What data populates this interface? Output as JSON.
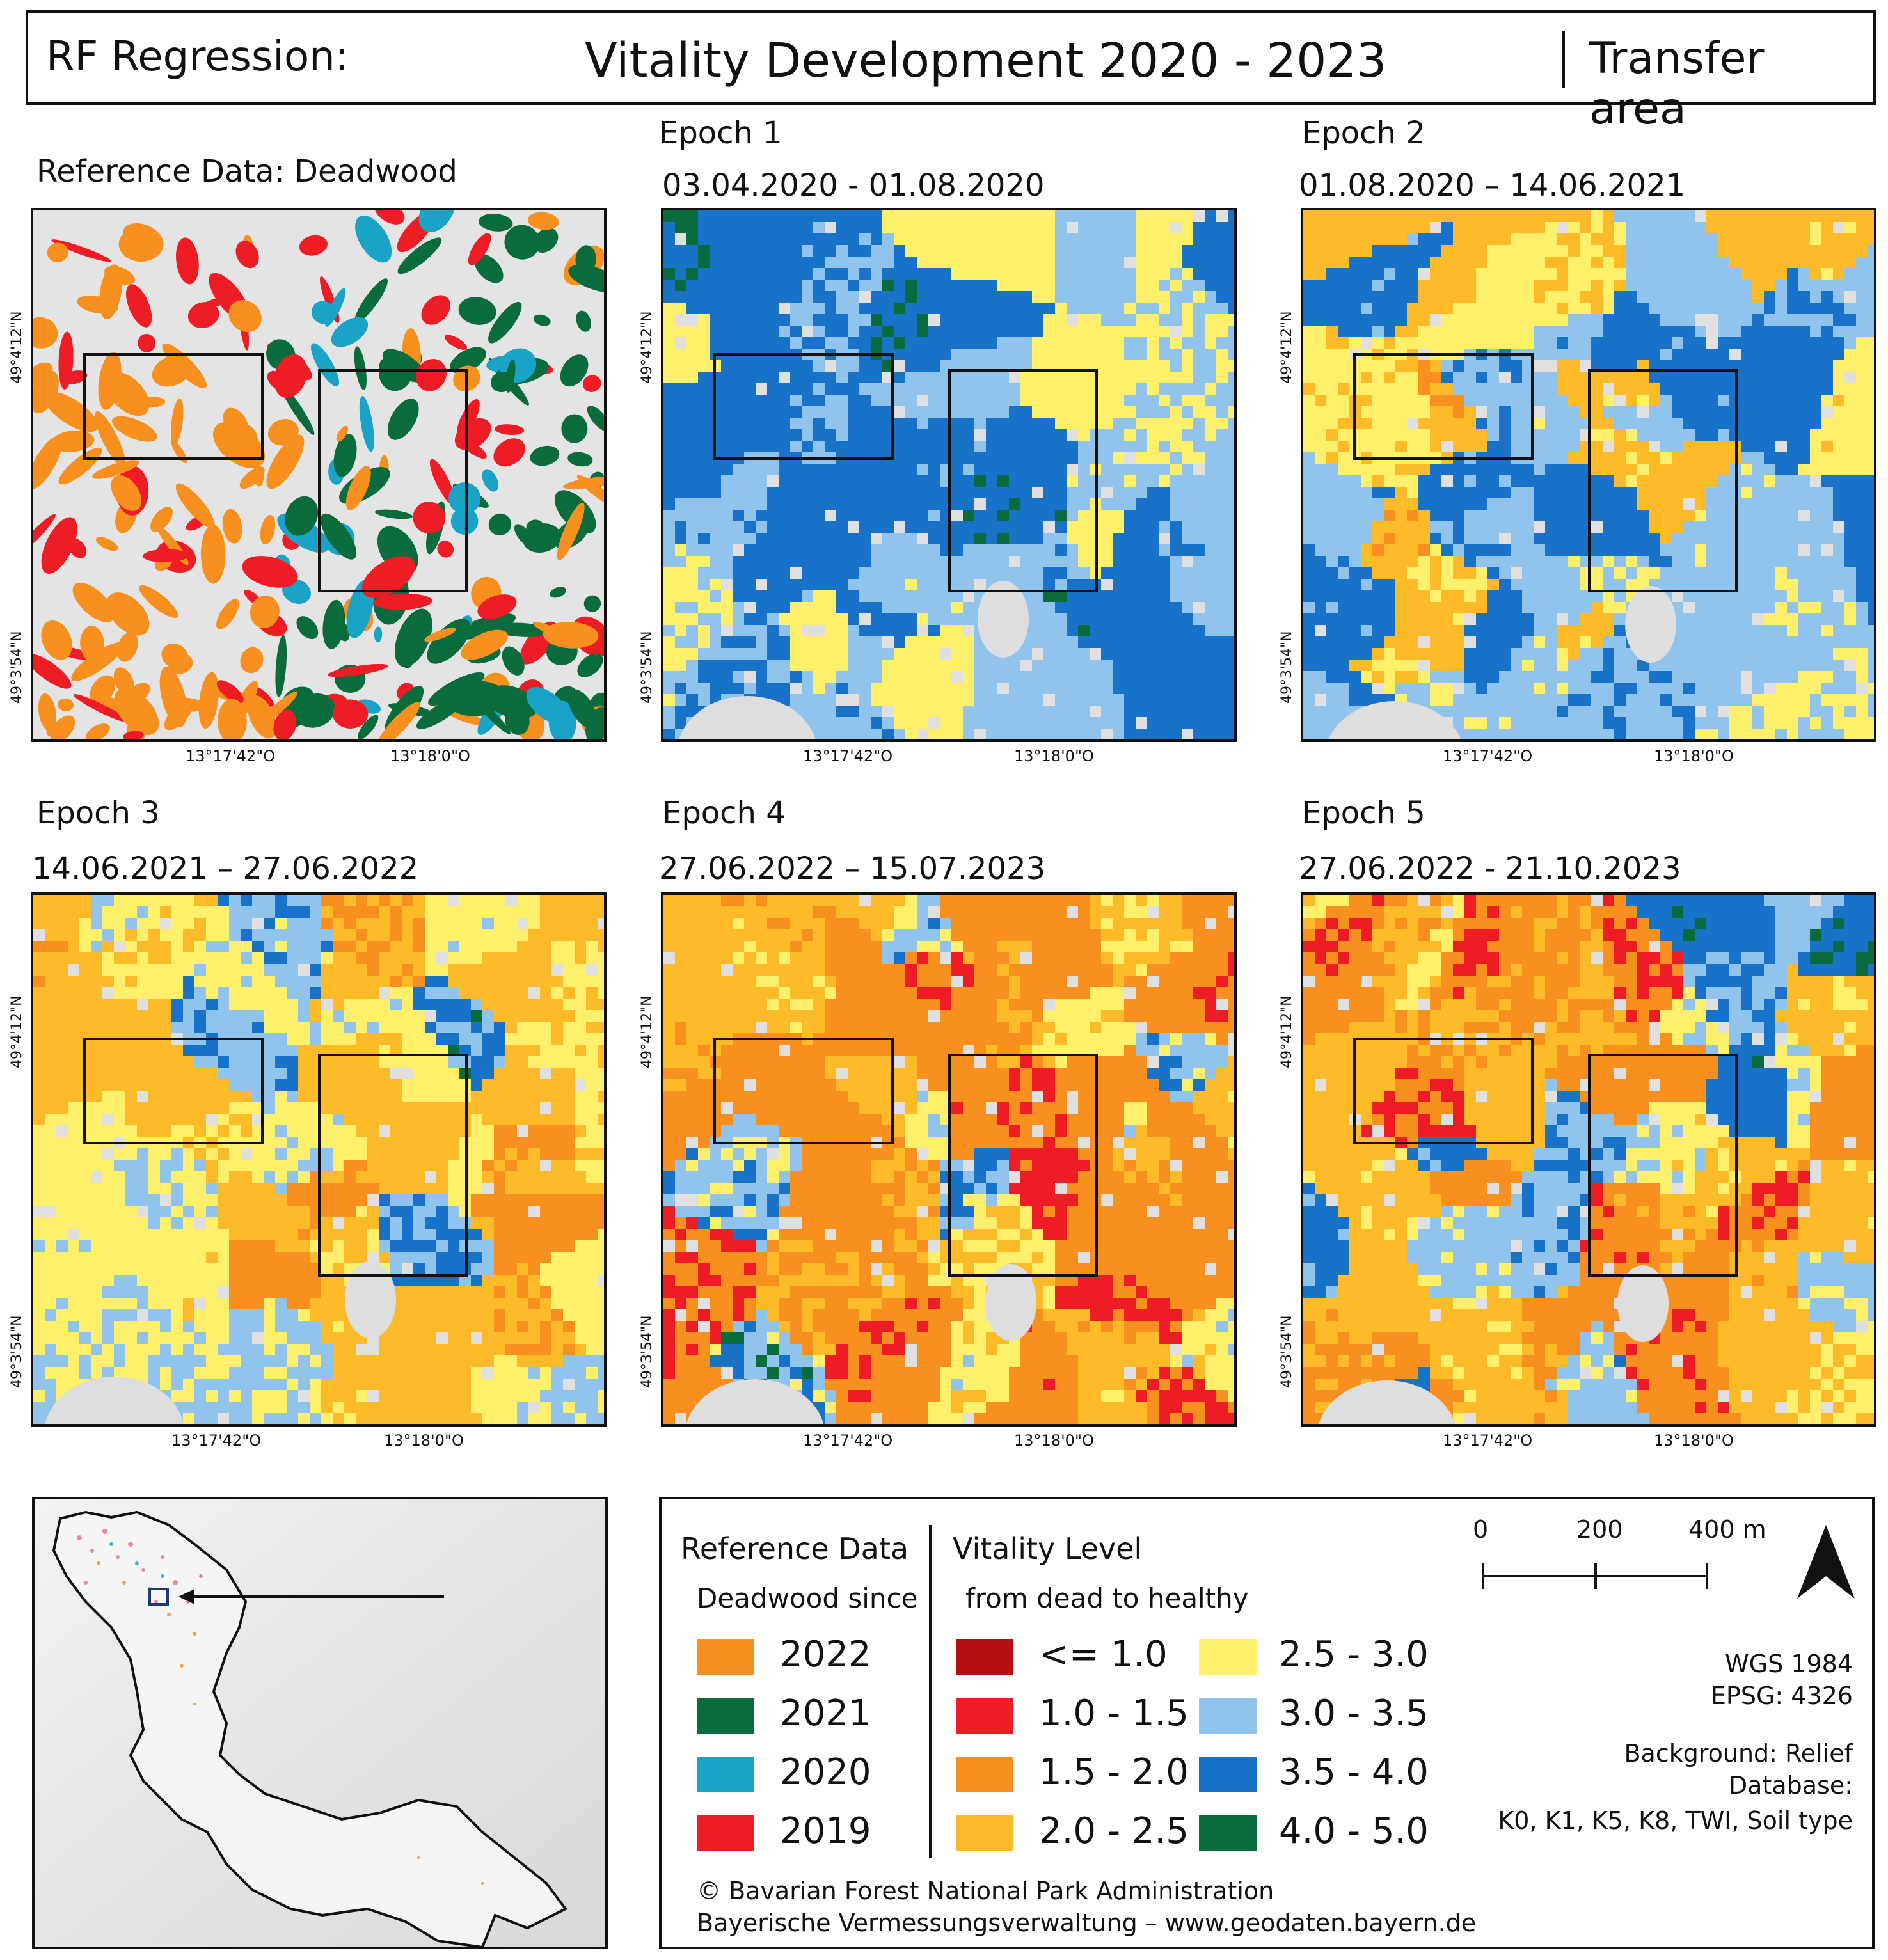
{
  "header": {
    "left": "RF Regression:",
    "center": "Vitality Development 2020 - 2023",
    "right": "Transfer area"
  },
  "panels": [
    {
      "name": "reference",
      "label": "Reference Data: Deadwood",
      "date": ""
    },
    {
      "name": "epoch1",
      "label": "Epoch 1",
      "date": "03.04.2020 - 01.08.2020"
    },
    {
      "name": "epoch2",
      "label": "Epoch 2",
      "date": "01.08.2020 – 14.06.2021"
    },
    {
      "name": "epoch3",
      "label": "Epoch 3",
      "date": "14.06.2021 – 27.06.2022"
    },
    {
      "name": "epoch4",
      "label": "Epoch 4",
      "date": "27.06.2022 – 15.07.2023"
    },
    {
      "name": "epoch5",
      "label": "Epoch 5",
      "date": "27.06.2022 - 21.10.2023"
    }
  ],
  "axes": {
    "lat_top": "49°4'12\"N",
    "lat_bottom": "49°3'54\"N",
    "lon_left": "13°17'42\"O",
    "lon_right": "13°18'0\"O"
  },
  "legend": {
    "reference_title": "Reference Data",
    "reference_sub": "Deadwood since",
    "reference_items": [
      {
        "label": "2022",
        "color": "#f7901e"
      },
      {
        "label": "2021",
        "color": "#0a6b3c"
      },
      {
        "label": "2020",
        "color": "#1aa3c6"
      },
      {
        "label": "2019",
        "color": "#ee1c25"
      }
    ],
    "vitality_title": "Vitality Level",
    "vitality_sub": "from dead to healthy",
    "vitality_items": [
      {
        "label": "<= 1.0",
        "color": "#b50d12"
      },
      {
        "label": "1.0 - 1.5",
        "color": "#ee1c25"
      },
      {
        "label": "1.5 - 2.0",
        "color": "#f7901e"
      },
      {
        "label": "2.0 - 2.5",
        "color": "#fdbb2a"
      },
      {
        "label": "2.5 - 3.0",
        "color": "#fef06a"
      },
      {
        "label": "3.0 - 3.5",
        "color": "#91c4ec"
      },
      {
        "label": "3.5 - 4.0",
        "color": "#1872c8"
      },
      {
        "label": "4.0 - 5.0",
        "color": "#0a6b3c"
      }
    ],
    "scale": {
      "ticks": [
        "0",
        "200",
        "400 m"
      ]
    },
    "crs_line1": "WGS 1984",
    "crs_line2": "EPSG: 4326",
    "background": "Background: Relief",
    "database_label": "Database:",
    "database_value": "K0, K1, K5, K8, TWI, Soil type",
    "credit1": "© Bavarian Forest National Park Administration",
    "credit2": "Bayerische Vermessungsverwaltung – www.geodaten.bayern.de"
  }
}
